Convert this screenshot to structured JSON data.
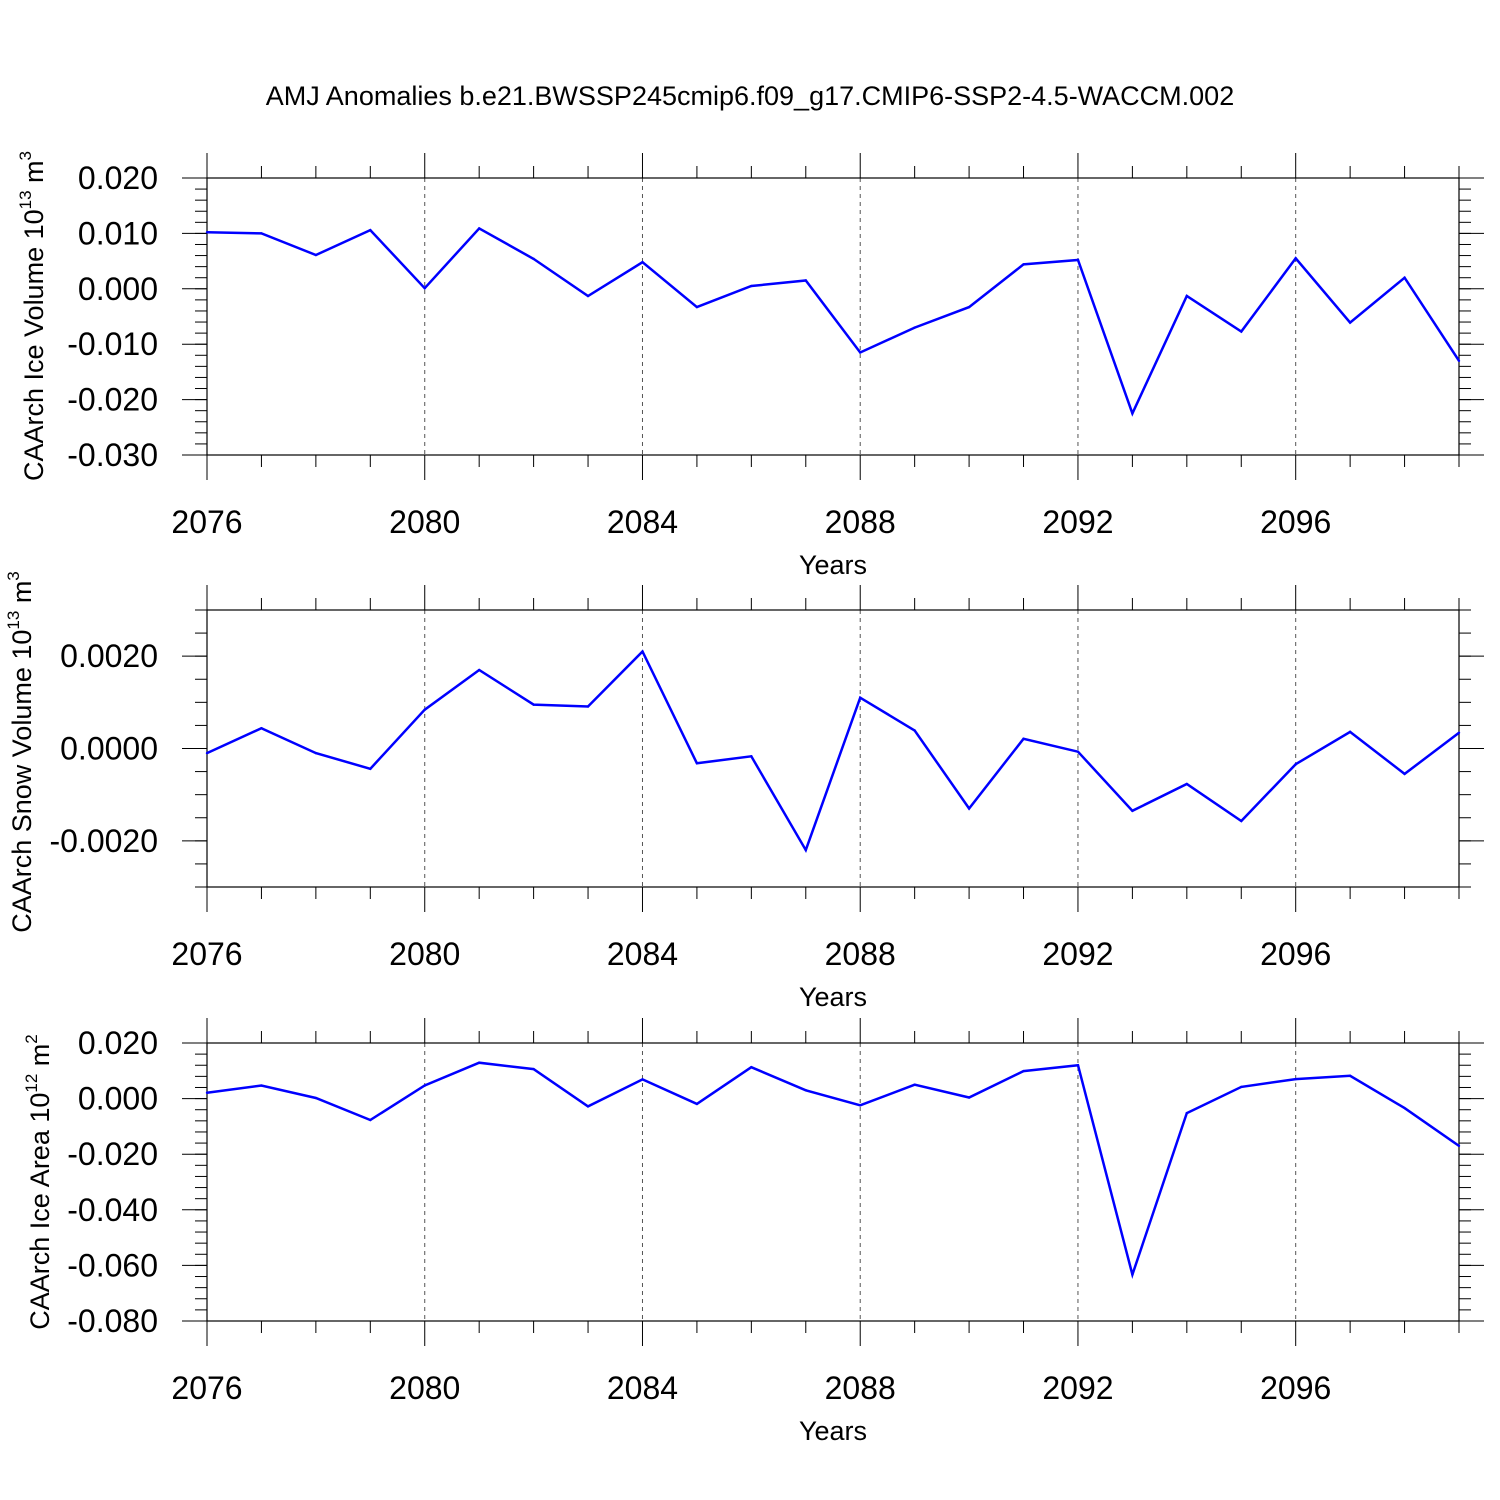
{
  "title": "AMJ Anomalies b.e21.BWSSP245cmip6.f09_g17.CMIP6-SSP2-4.5-WACCM.002",
  "line_color": "#0000ff",
  "chart_data": [
    {
      "type": "line",
      "ylabel_main": "CAArch Ice Volume 10",
      "ylabel_exp": "13",
      "ylabel_unit": "m",
      "ylabel_unit_exp": "3",
      "xlabel": "Years",
      "xlim": [
        2076,
        2099
      ],
      "ylim": [
        -0.03,
        0.02
      ],
      "yticks": [
        -0.03,
        -0.02,
        -0.01,
        0.0,
        0.01,
        0.02
      ],
      "ytick_labels": [
        "-0.030",
        "-0.020",
        "-0.010",
        "0.000",
        "0.010",
        "0.020"
      ],
      "yminor_step": 0.002,
      "xticks": [
        2076,
        2080,
        2084,
        2088,
        2092,
        2096
      ],
      "xtick_labels": [
        "2076",
        "2080",
        "2084",
        "2088",
        "2092",
        "2096"
      ],
      "grid_x": [
        2080,
        2084,
        2088,
        2092,
        2096
      ],
      "x": [
        2076,
        2077,
        2078,
        2079,
        2080,
        2081,
        2082,
        2083,
        2084,
        2085,
        2086,
        2087,
        2088,
        2089,
        2090,
        2091,
        2092,
        2093,
        2094,
        2095,
        2096,
        2097,
        2098,
        2099
      ],
      "y": [
        0.0102,
        0.01,
        0.0061,
        0.0106,
        0.0001,
        0.0109,
        0.0054,
        -0.0013,
        0.0048,
        -0.0033,
        0.0005,
        0.0015,
        -0.0115,
        -0.007,
        -0.0033,
        0.0044,
        0.0052,
        -0.0225,
        -0.0013,
        -0.0077,
        0.0055,
        -0.0061,
        0.002,
        -0.013
      ]
    },
    {
      "type": "line",
      "ylabel_main": "CAArch Snow Volume 10",
      "ylabel_exp": "13",
      "ylabel_unit": "m",
      "ylabel_unit_exp": "3",
      "xlabel": "Years",
      "xlim": [
        2076,
        2099
      ],
      "ylim": [
        -0.003,
        0.003
      ],
      "yticks": [
        -0.002,
        0.0,
        0.002
      ],
      "ytick_labels": [
        "-0.0020",
        "0.0000",
        "0.0020"
      ],
      "yminor_step": 0.0005,
      "xticks": [
        2076,
        2080,
        2084,
        2088,
        2092,
        2096
      ],
      "xtick_labels": [
        "2076",
        "2080",
        "2084",
        "2088",
        "2092",
        "2096"
      ],
      "grid_x": [
        2080,
        2084,
        2088,
        2092,
        2096
      ],
      "x": [
        2076,
        2077,
        2078,
        2079,
        2080,
        2081,
        2082,
        2083,
        2084,
        2085,
        2086,
        2087,
        2088,
        2089,
        2090,
        2091,
        2092,
        2093,
        2094,
        2095,
        2096,
        2097,
        2098,
        2099
      ],
      "y": [
        -0.0001,
        0.00044,
        -0.0001,
        -0.00044,
        0.00084,
        0.0017,
        0.00095,
        0.00091,
        0.0021,
        -0.00032,
        -0.00017,
        -0.0022,
        0.0011,
        0.00039,
        -0.0013,
        0.00021,
        -7e-05,
        -0.00135,
        -0.00077,
        -0.00157,
        -0.00034,
        0.00036,
        -0.00055,
        0.00034
      ]
    },
    {
      "type": "line",
      "ylabel_main": "CAArch Ice Area 10",
      "ylabel_exp": "12",
      "ylabel_unit": "m",
      "ylabel_unit_exp": "2",
      "xlabel": "Years",
      "xlim": [
        2076,
        2099
      ],
      "ylim": [
        -0.08,
        0.02
      ],
      "yticks": [
        -0.08,
        -0.06,
        -0.04,
        -0.02,
        0.0,
        0.02
      ],
      "ytick_labels": [
        "-0.080",
        "-0.060",
        "-0.040",
        "-0.020",
        "0.000",
        "0.020"
      ],
      "yminor_step": 0.004,
      "xticks": [
        2076,
        2080,
        2084,
        2088,
        2092,
        2096
      ],
      "xtick_labels": [
        "2076",
        "2080",
        "2084",
        "2088",
        "2092",
        "2096"
      ],
      "grid_x": [
        2080,
        2084,
        2088,
        2092,
        2096
      ],
      "x": [
        2076,
        2077,
        2078,
        2079,
        2080,
        2081,
        2082,
        2083,
        2084,
        2085,
        2086,
        2087,
        2088,
        2089,
        2090,
        2091,
        2092,
        2093,
        2094,
        2095,
        2096,
        2097,
        2098,
        2099
      ],
      "y": [
        0.0021,
        0.0047,
        0.0002,
        -0.0077,
        0.0047,
        0.0129,
        0.0106,
        -0.0028,
        0.0069,
        -0.0019,
        0.0113,
        0.003,
        -0.0024,
        0.005,
        0.0004,
        0.0099,
        0.012,
        -0.0633,
        -0.0052,
        0.0042,
        0.007,
        0.0082,
        -0.0034,
        -0.017
      ]
    }
  ]
}
